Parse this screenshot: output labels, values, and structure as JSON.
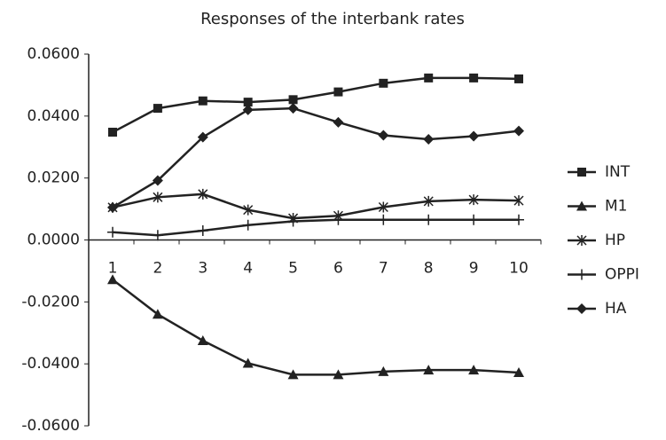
{
  "chart_data": {
    "type": "line",
    "title": "Responses of the interbank rates",
    "categories": [
      "1",
      "2",
      "3",
      "4",
      "5",
      "6",
      "7",
      "8",
      "9",
      "10"
    ],
    "series": [
      {
        "name": "INT",
        "color": "#222222",
        "marker": "square",
        "values": [
          0.0348,
          0.0425,
          0.0449,
          0.0445,
          0.0453,
          0.0478,
          0.0506,
          0.0523,
          0.0523,
          0.052
        ]
      },
      {
        "name": "M1",
        "color": "#222222",
        "marker": "triangle",
        "values": [
          -0.0128,
          -0.024,
          -0.0325,
          -0.0398,
          -0.0435,
          -0.0435,
          -0.0425,
          -0.042,
          -0.042,
          -0.0428
        ]
      },
      {
        "name": "HP",
        "color": "#222222",
        "marker": "star",
        "values": [
          0.0105,
          0.0138,
          0.0148,
          0.0097,
          0.007,
          0.0078,
          0.0106,
          0.0125,
          0.013,
          0.0127
        ]
      },
      {
        "name": "OPPI",
        "color": "#222222",
        "marker": "plus",
        "values": [
          0.0025,
          0.0015,
          0.003,
          0.0048,
          0.006,
          0.0065,
          0.0065,
          0.0065,
          0.0065,
          0.0065
        ]
      },
      {
        "name": "HA",
        "color": "#222222",
        "marker": "diamond",
        "values": [
          0.0105,
          0.0192,
          0.0332,
          0.042,
          0.0425,
          0.038,
          0.0338,
          0.0325,
          0.0335,
          0.0352
        ]
      }
    ],
    "ylim": [
      -0.06,
      0.06
    ],
    "yticks": [
      {
        "value": 0.06,
        "label": "0.0600"
      },
      {
        "value": 0.04,
        "label": "0.0400"
      },
      {
        "value": 0.02,
        "label": "0.0200"
      },
      {
        "value": 0,
        "label": "0.0000"
      },
      {
        "value": -0.02,
        "label": "-0.0200"
      },
      {
        "value": -0.04,
        "label": "-0.0400"
      },
      {
        "value": -0.06,
        "label": "-0.0600"
      }
    ],
    "grid": false,
    "legend": "right"
  }
}
